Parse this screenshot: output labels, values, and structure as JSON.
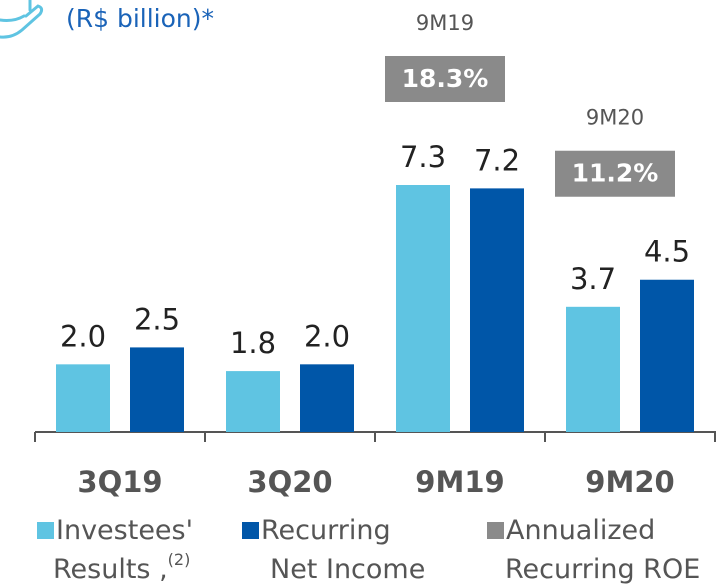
{
  "chart_data": {
    "type": "bar",
    "subtitle": "(R$ billion)*",
    "categories": [
      "3Q19",
      "3Q20",
      "9M19",
      "9M20"
    ],
    "series": [
      {
        "name": "Investees' Results ,",
        "name_note": "(2)",
        "color": "#5fc4e2",
        "values": [
          2.0,
          1.8,
          7.3,
          3.7
        ],
        "value_labels": [
          "2.0",
          "1.8",
          "7.3",
          "3.7"
        ]
      },
      {
        "name": "Recurring Net Income",
        "color": "#0056a8",
        "values": [
          2.5,
          2.0,
          7.2,
          4.5
        ],
        "value_labels": [
          "2.5",
          "2.0",
          "7.2",
          "4.5"
        ]
      },
      {
        "name": "Annualized Recurring ROE",
        "type": "box",
        "color": "#8a8a8a",
        "values": [
          null,
          null,
          18.3,
          11.2
        ],
        "value_labels": [
          null,
          null,
          "18.3%",
          "11.2%"
        ]
      }
    ]
  }
}
